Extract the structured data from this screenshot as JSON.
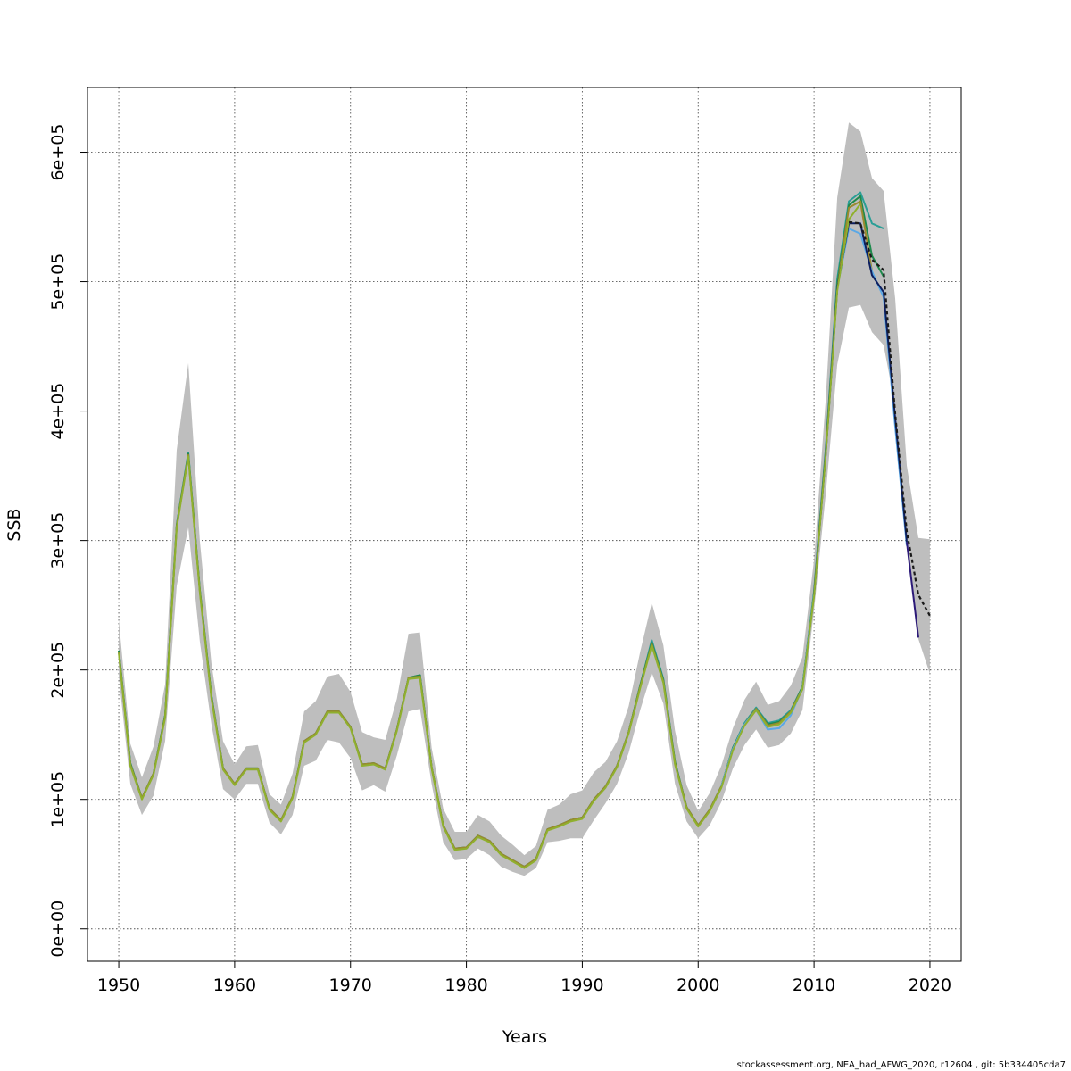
{
  "chart_data": {
    "type": "line",
    "xlabel": "Years",
    "ylabel": "SSB",
    "xlim": [
      1947.3,
      2022.7
    ],
    "ylim": [
      -25000,
      650000
    ],
    "xticks": [
      1950,
      1960,
      1970,
      1980,
      1990,
      2000,
      2010,
      2020
    ],
    "yticks": [
      0,
      100000,
      200000,
      300000,
      400000,
      500000,
      600000
    ],
    "xtick_labels": [
      "1950",
      "1960",
      "1970",
      "1980",
      "1990",
      "2000",
      "2010",
      "2020"
    ],
    "ytick_labels": [
      "0e+00",
      "1e+05",
      "2e+05",
      "3e+05",
      "4e+05",
      "5e+05",
      "6e+05"
    ],
    "grid": true,
    "confidence_band": {
      "x": [
        1950,
        1951,
        1952,
        1953,
        1954,
        1955,
        1956,
        1957,
        1958,
        1959,
        1960,
        1961,
        1962,
        1963,
        1964,
        1965,
        1966,
        1967,
        1968,
        1969,
        1970,
        1971,
        1972,
        1973,
        1974,
        1975,
        1976,
        1977,
        1978,
        1979,
        1980,
        1981,
        1982,
        1983,
        1984,
        1985,
        1986,
        1987,
        1988,
        1989,
        1990,
        1991,
        1992,
        1993,
        1994,
        1995,
        1996,
        1997,
        1998,
        1999,
        2000,
        2001,
        2002,
        2003,
        2004,
        2005,
        2006,
        2007,
        2008,
        2009,
        2010,
        2011,
        2012,
        2013,
        2014,
        2015,
        2016,
        2017,
        2018,
        2019,
        2020
      ],
      "lower": [
        195000,
        112000,
        88000,
        103000,
        145000,
        265000,
        310000,
        222000,
        158000,
        108000,
        100000,
        112000,
        112000,
        82000,
        73000,
        88000,
        126000,
        130000,
        146000,
        144000,
        132000,
        107000,
        111000,
        106000,
        134000,
        168000,
        170000,
        112000,
        67000,
        53000,
        54000,
        62000,
        57000,
        48000,
        44000,
        41000,
        47000,
        67000,
        68000,
        70000,
        70000,
        84000,
        97000,
        112000,
        136000,
        169000,
        198000,
        174000,
        112000,
        83000,
        70000,
        80000,
        98000,
        124000,
        142000,
        154000,
        140000,
        142000,
        151000,
        169000,
        246000,
        335000,
        436000,
        480000,
        482000,
        461000,
        451000,
        404000,
        304000,
        224000,
        197000
      ],
      "upper": [
        239000,
        143000,
        117000,
        141000,
        189000,
        370000,
        437000,
        300000,
        205000,
        145000,
        127000,
        141000,
        142000,
        104000,
        96000,
        120000,
        168000,
        176000,
        195000,
        197000,
        183000,
        152000,
        148000,
        146000,
        178000,
        228000,
        229000,
        140000,
        93000,
        75000,
        75000,
        88000,
        83000,
        72000,
        65000,
        57000,
        64000,
        92000,
        96000,
        104000,
        107000,
        121000,
        129000,
        145000,
        172000,
        214000,
        252000,
        219000,
        153000,
        111000,
        91000,
        105000,
        126000,
        155000,
        177000,
        191000,
        173000,
        176000,
        188000,
        210000,
        285000,
        408000,
        565000,
        623000,
        616000,
        580000,
        570000,
        487000,
        358000,
        302000,
        301000
      ]
    },
    "series": [
      {
        "color": "#2a9e96",
        "dashed": false,
        "x": [
          1950,
          1951,
          1952,
          1953,
          1954,
          1955,
          1956,
          1957,
          1958,
          1959,
          1960,
          1961,
          1962,
          1963,
          1964,
          1965,
          1966,
          1967,
          1968,
          1969,
          1970,
          1971,
          1972,
          1973,
          1974,
          1975,
          1976,
          1977,
          1978,
          1979,
          1980,
          1981,
          1982,
          1983,
          1984,
          1985,
          1986,
          1987,
          1988,
          1989,
          1990,
          1991,
          1992,
          1993,
          1994,
          1995,
          1996,
          1997,
          1998,
          1999,
          2000,
          2001,
          2002,
          2003,
          2004,
          2005,
          2006,
          2007,
          2008,
          2009,
          2010,
          2011,
          2012,
          2013,
          2014,
          2015,
          2016
        ],
        "values": [
          215000,
          128000,
          101000,
          120000,
          165000,
          312000,
          368000,
          262000,
          180000,
          124000,
          112000,
          124000,
          124000,
          93000,
          84000,
          102000,
          145000,
          151000,
          168000,
          168000,
          156000,
          127000,
          128000,
          124000,
          154000,
          194000,
          196000,
          125000,
          80000,
          62000,
          63000,
          72000,
          68000,
          58000,
          53000,
          48000,
          54000,
          77000,
          80000,
          84000,
          86000,
          100000,
          110000,
          126000,
          152000,
          188000,
          223000,
          193000,
          129000,
          94000,
          80000,
          92000,
          110000,
          140000,
          159000,
          171000,
          159000,
          161000,
          169000,
          187000,
          261000,
          370000,
          502000,
          562000,
          569000,
          545000,
          541000
        ]
      },
      {
        "color": "#1e8a4c",
        "dashed": false,
        "x": [
          1950,
          1951,
          1952,
          1953,
          1954,
          1955,
          1956,
          1957,
          1958,
          1959,
          1960,
          1961,
          1962,
          1963,
          1964,
          1965,
          1966,
          1967,
          1968,
          1969,
          1970,
          1971,
          1972,
          1973,
          1974,
          1975,
          1976,
          1977,
          1978,
          1979,
          1980,
          1981,
          1982,
          1983,
          1984,
          1985,
          1986,
          1987,
          1988,
          1989,
          1990,
          1991,
          1992,
          1993,
          1994,
          1995,
          1996,
          1997,
          1998,
          1999,
          2000,
          2001,
          2002,
          2003,
          2004,
          2005,
          2006,
          2007,
          2008,
          2009,
          2010,
          2011,
          2012,
          2013,
          2014,
          2015,
          2016
        ],
        "values": [
          215000,
          128000,
          101000,
          120000,
          165000,
          312000,
          367000,
          262000,
          180000,
          124000,
          112000,
          124000,
          124000,
          93000,
          84000,
          102000,
          145000,
          151000,
          168000,
          168000,
          156000,
          127000,
          128000,
          124000,
          154000,
          194000,
          196000,
          125000,
          80000,
          62000,
          63000,
          72000,
          68000,
          58000,
          53000,
          48000,
          54000,
          77000,
          80000,
          84000,
          86000,
          100000,
          110000,
          126000,
          152000,
          188000,
          221000,
          192000,
          129000,
          94000,
          80000,
          92000,
          110000,
          140000,
          158000,
          170000,
          158000,
          160000,
          168000,
          187000,
          259000,
          368000,
          498000,
          559000,
          566000,
          520000,
          504000
        ]
      },
      {
        "color": "#9a8a2e",
        "dashed": false,
        "x": [
          1950,
          1951,
          1952,
          1953,
          1954,
          1955,
          1956,
          1957,
          1958,
          1959,
          1960,
          1961,
          1962,
          1963,
          1964,
          1965,
          1966,
          1967,
          1968,
          1969,
          1970,
          1971,
          1972,
          1973,
          1974,
          1975,
          1976,
          1977,
          1978,
          1979,
          1980,
          1981,
          1982,
          1983,
          1984,
          1985,
          1986,
          1987,
          1988,
          1989,
          1990,
          1991,
          1992,
          1993,
          1994,
          1995,
          1996,
          1997,
          1998,
          1999,
          2000,
          2001,
          2002,
          2003,
          2004,
          2005,
          2006,
          2007,
          2008,
          2009,
          2010,
          2011,
          2012,
          2013,
          2014,
          2015
        ],
        "values": [
          214000,
          127000,
          101000,
          120000,
          164000,
          311000,
          366000,
          261000,
          179000,
          124000,
          112000,
          124000,
          124000,
          93000,
          84000,
          102000,
          145000,
          151000,
          168000,
          168000,
          156000,
          127000,
          128000,
          124000,
          154000,
          194000,
          195000,
          125000,
          80000,
          62000,
          63000,
          72000,
          68000,
          58000,
          53000,
          48000,
          54000,
          77000,
          80000,
          84000,
          86000,
          100000,
          110000,
          126000,
          152000,
          187000,
          220000,
          191000,
          128000,
          94000,
          80000,
          92000,
          110000,
          139000,
          158000,
          170000,
          157000,
          159000,
          168000,
          186000,
          258000,
          366000,
          495000,
          557000,
          562000,
          508000
        ]
      },
      {
        "color": "#5aa8e6",
        "dashed": false,
        "x": [
          2002,
          2003,
          2004,
          2005,
          2006,
          2007,
          2008,
          2009,
          2010,
          2011,
          2012,
          2013,
          2014,
          2015,
          2016,
          2017,
          2018
        ],
        "values": [
          110000,
          139000,
          158000,
          169000,
          154000,
          155000,
          165000,
          186000,
          258000,
          366000,
          495000,
          541000,
          537000,
          508000,
          488000,
          388000,
          296000
        ]
      },
      {
        "color": "#0e1f5e",
        "dashed": false,
        "x": [
          2010,
          2011,
          2012,
          2013,
          2014,
          2015,
          2016,
          2017,
          2018
        ],
        "values": [
          258000,
          366000,
          495000,
          545000,
          545000,
          505000,
          492000,
          395000,
          299000
        ]
      },
      {
        "color": "#2c1a78",
        "dashed": false,
        "x": [
          2018,
          2019
        ],
        "values": [
          299000,
          225000
        ]
      },
      {
        "color": "#8fb02e",
        "dashed": false,
        "x": [
          1950,
          1951,
          1952,
          1953,
          1954,
          1955,
          1956,
          1957,
          1958,
          1959,
          1960,
          1961,
          1962,
          1963,
          1964,
          1965,
          1966,
          1967,
          1968,
          1969,
          1970,
          1971,
          1972,
          1973,
          1974,
          1975,
          1976,
          1977,
          1978,
          1979,
          1980,
          1981,
          1982,
          1983,
          1984,
          1985,
          1986,
          1987,
          1988,
          1989,
          1990,
          1991,
          1992,
          1993,
          1994,
          1995,
          1996,
          1997,
          1998,
          1999,
          2000,
          2001,
          2002,
          2003,
          2004,
          2005,
          2006,
          2007,
          2008,
          2009,
          2010,
          2011,
          2012,
          2013,
          2014
        ],
        "values": [
          213000,
          126000,
          100000,
          119000,
          163000,
          310000,
          365000,
          260000,
          178000,
          123000,
          111000,
          123000,
          123000,
          92000,
          83000,
          101000,
          144000,
          150000,
          167000,
          167000,
          155000,
          126000,
          127000,
          123000,
          153000,
          193000,
          194000,
          124000,
          79000,
          61000,
          62000,
          71000,
          67000,
          57000,
          52000,
          47000,
          53000,
          76000,
          79000,
          83000,
          85000,
          99000,
          109000,
          125000,
          151000,
          186000,
          219000,
          190000,
          127000,
          93000,
          79000,
          91000,
          109000,
          138000,
          157000,
          169000,
          156000,
          158000,
          167000,
          185000,
          257000,
          365000,
          493000,
          548000,
          560000
        ]
      },
      {
        "color": "#1a1a1a",
        "dashed": true,
        "x": [
          2013,
          2014,
          2015,
          2016,
          2017,
          2018,
          2019,
          2020
        ],
        "values": [
          546000,
          545000,
          517000,
          509000,
          398000,
          307000,
          258000,
          242000
        ]
      }
    ],
    "footer": "stockassessment.org, NEA_had_AFWG_2020, r12604 , git: 5b334405cda7"
  }
}
